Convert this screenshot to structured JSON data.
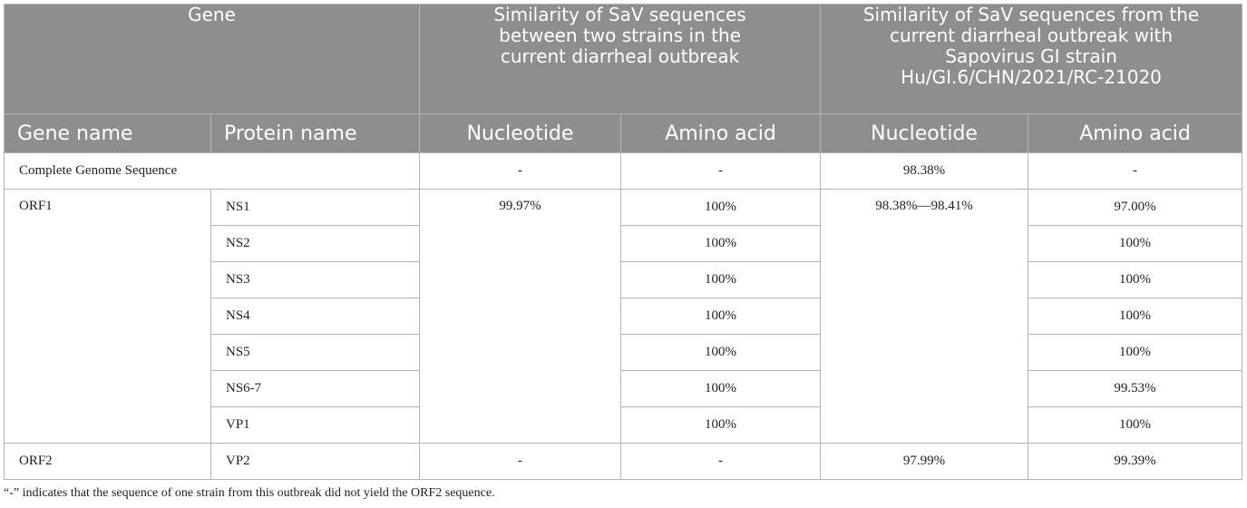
{
  "table": {
    "group_headers": {
      "gene": "Gene",
      "between_strains": "Similarity of SaV sequences between two strains in the current diarrheal outbreak",
      "vs_reference_line1": "Similarity of SaV sequences from the current diarrheal outbreak",
      "vs_reference_line2": "with Sapovirus GI strain Hu/GI.6/CHN/2021/RC-21020"
    },
    "column_headers": {
      "gene_name": "Gene name",
      "protein_name": "Protein name",
      "nucleotide_1": "Nucleotide",
      "amino_acid_1": "Amino acid",
      "nucleotide_2": "Nucleotide",
      "amino_acid_2": "Amino acid"
    },
    "complete_genome": {
      "label": "Complete Genome Sequence",
      "nucleotide_1": "-",
      "amino_acid_1": "-",
      "nucleotide_2": "98.38%",
      "amino_acid_2": "-"
    },
    "orf1": {
      "gene": "ORF1",
      "nucleotide_1": "99.97%",
      "nucleotide_2": "98.38%—98.41%",
      "rows": [
        {
          "protein": "NS1",
          "amino_acid_1": "100%",
          "amino_acid_2": "97.00%"
        },
        {
          "protein": "NS2",
          "amino_acid_1": "100%",
          "amino_acid_2": "100%"
        },
        {
          "protein": "NS3",
          "amino_acid_1": "100%",
          "amino_acid_2": "100%"
        },
        {
          "protein": "NS4",
          "amino_acid_1": "100%",
          "amino_acid_2": "100%"
        },
        {
          "protein": "NS5",
          "amino_acid_1": "100%",
          "amino_acid_2": "100%"
        },
        {
          "protein": "NS6-7",
          "amino_acid_1": "100%",
          "amino_acid_2": "99.53%"
        },
        {
          "protein": "VP1",
          "amino_acid_1": "100%",
          "amino_acid_2": "100%"
        }
      ]
    },
    "orf2": {
      "gene": "ORF2",
      "protein": "VP2",
      "nucleotide_1": "-",
      "amino_acid_1": "-",
      "nucleotide_2": "97.99%",
      "amino_acid_2": "99.39%"
    }
  },
  "footnote": "“-” indicates that the sequence of one strain from this outbreak did not yield the ORF2 sequence."
}
